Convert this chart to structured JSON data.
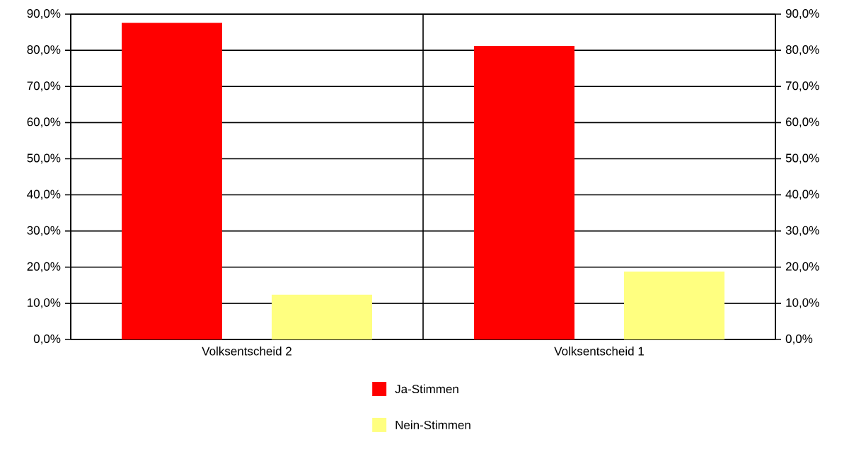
{
  "chart_data": {
    "type": "bar",
    "categories": [
      "Volksentscheid 2",
      "Volksentscheid 1"
    ],
    "series": [
      {
        "name": "Ja-Stimmen",
        "color": "#ff0000",
        "values": [
          87.6,
          81.2
        ]
      },
      {
        "name": "Nein-Stimmen",
        "color": "#ffff80",
        "values": [
          12.4,
          18.8
        ]
      }
    ],
    "ylim": [
      0,
      90
    ],
    "yticks": [
      {
        "value": 0,
        "label": "0,0%"
      },
      {
        "value": 10,
        "label": "10,0%"
      },
      {
        "value": 20,
        "label": "20,0%"
      },
      {
        "value": 30,
        "label": "30,0%"
      },
      {
        "value": 40,
        "label": "40,0%"
      },
      {
        "value": 50,
        "label": "50,0%"
      },
      {
        "value": 60,
        "label": "60,0%"
      },
      {
        "value": 70,
        "label": "70,0%"
      },
      {
        "value": 80,
        "label": "80,0%"
      },
      {
        "value": 90,
        "label": "90,0%"
      }
    ],
    "y2lim": [
      0,
      90
    ],
    "y2ticks": [
      {
        "value": 0,
        "label": "0,0%"
      },
      {
        "value": 10,
        "label": "10,0%"
      },
      {
        "value": 20,
        "label": "20,0%"
      },
      {
        "value": 30,
        "label": "30,0%"
      },
      {
        "value": 40,
        "label": "40,0%"
      },
      {
        "value": 50,
        "label": "50,0%"
      },
      {
        "value": 60,
        "label": "60,0%"
      },
      {
        "value": 70,
        "label": "70,0%"
      },
      {
        "value": 80,
        "label": "80,0%"
      },
      {
        "value": 90,
        "label": "90,0%"
      }
    ],
    "grid": "y",
    "legend": "bottom"
  }
}
